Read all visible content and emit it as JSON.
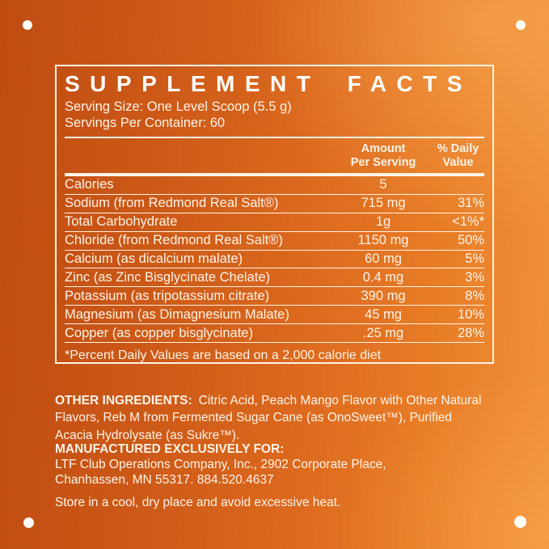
{
  "panel": {
    "title": "SUPPLEMENT FACTS",
    "serving_size": "Serving Size: One Level Scoop (5.5 g)",
    "servings_per_container": "Servings Per Container: 60",
    "columns": {
      "amount_line1": "Amount",
      "amount_line2": "Per Serving",
      "dv_line1": "% Daily",
      "dv_line2": "Value"
    },
    "rows": [
      {
        "name": "Calories",
        "amount": "5",
        "dv": ""
      },
      {
        "name": "Sodium (from Redmond Real Salt®)",
        "amount": "715 mg",
        "dv": "31%"
      },
      {
        "name": "Total Carbohydrate",
        "amount": "1g",
        "dv": "<1%*"
      },
      {
        "name": "Chloride (from Redmond Real Salt®)",
        "amount": "1150 mg",
        "dv": "50%"
      },
      {
        "name": "Calcium (as dicalcium malate)",
        "amount": "60 mg",
        "dv": "5%"
      },
      {
        "name": "Zinc (as Zinc Bisglycinate Chelate)",
        "amount": "0.4 mg",
        "dv": "3%"
      },
      {
        "name": "Potassium (as tripotassium citrate)",
        "amount": "390 mg",
        "dv": "8%"
      },
      {
        "name": "Magnesium (as Dimagnesium Malate)",
        "amount": "45 mg",
        "dv": "10%"
      },
      {
        "name": "Copper (as copper bisglycinate)",
        "amount": ".25 mg",
        "dv": "28%"
      }
    ],
    "footnote": "*Percent Daily Values are based on a 2,000 calorie diet"
  },
  "sections": {
    "other_ingredients_label": "OTHER INGREDIENTS:",
    "other_ingredients_text": "Citric Acid, Peach Mango Flavor with Other Natural Flavors, Reb M from Fermented Sugar Cane (as OnoSweet™), Purified Acacia Hydrolysate (as Sukre™).",
    "manufactured_label": "MANUFACTURED EXCLUSIVELY FOR:",
    "manufactured_line1": "LTF Club Operations Company, Inc., 2902 Corporate Place,",
    "manufactured_line2": "Chanhassen, MN 55317. 884.520.4637",
    "storage": "Store in a cool, dry place and avoid excessive heat."
  },
  "colors": {
    "background_dark_orange": "#bf4c12",
    "background_light_orange": "#f0913a",
    "text_cream": "#fdf4e8",
    "title_white": "#ffffff"
  }
}
